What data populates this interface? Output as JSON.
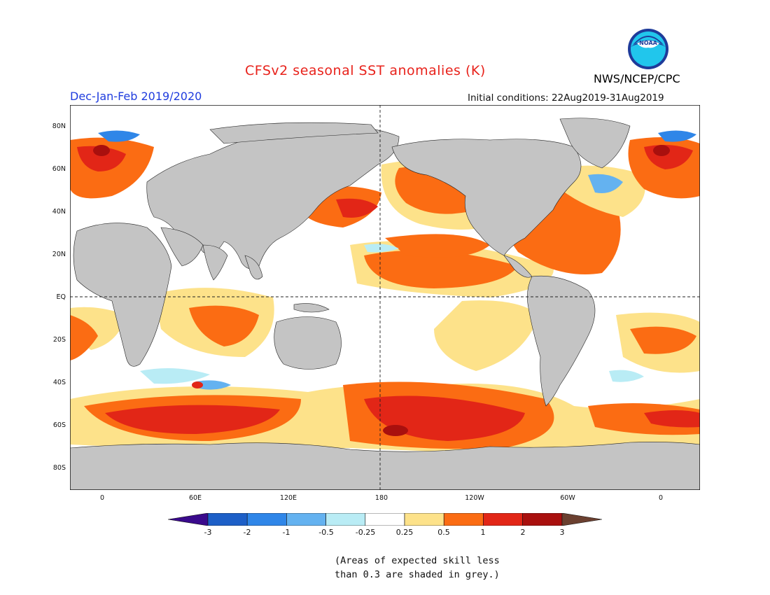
{
  "title": "CFSv2 seasonal SST anomalies (K)",
  "season": "Dec-Jan-Feb 2019/2020",
  "initial_conditions": "Initial conditions: 22Aug2019-31Aug2019",
  "agency": "NWS/NCEP/CPC",
  "logo_text": "NOAA",
  "lat_labels": [
    "80N",
    "60N",
    "40N",
    "20N",
    "EQ",
    "20S",
    "40S",
    "60S",
    "80S"
  ],
  "lon_labels": [
    "0",
    "60E",
    "120E",
    "180",
    "120W",
    "60W",
    "0"
  ],
  "colorbar": {
    "ticks": [
      "-3",
      "-2",
      "-1",
      "-0.5",
      "-0.25",
      "0.25",
      "0.5",
      "1",
      "2",
      "3"
    ],
    "colors": [
      "#3a0a8c",
      "#1d5fc7",
      "#2f86e8",
      "#64b2f0",
      "#b9ecf5",
      "#ffffff",
      "#fde28a",
      "#fb6c13",
      "#e22617",
      "#a9100e",
      "#6b4030"
    ]
  },
  "note_line1": "(Areas of expected skill less",
  "note_line2": "than 0.3 are shaded in grey.)",
  "colors": {
    "land": "#c4c4c4",
    "ocean_neutral": "#ffffff",
    "title": "#e8221b",
    "season": "#1f3cde"
  }
}
